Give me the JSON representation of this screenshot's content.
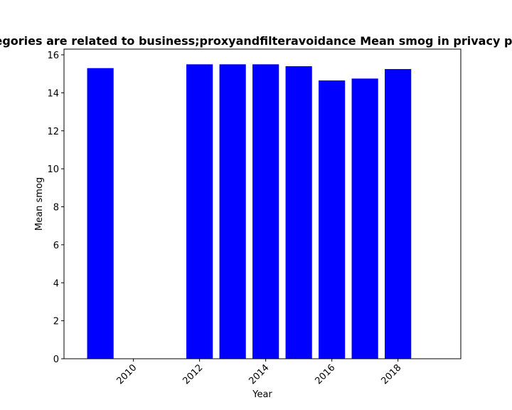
{
  "chart_data": {
    "type": "bar",
    "title": "Categories are related to business;proxyandfilteravoidance Mean smog in privacy policies",
    "xlabel": "Year",
    "ylabel": "Mean smog",
    "x": [
      2009,
      2012,
      2013,
      2014,
      2015,
      2016,
      2017,
      2018
    ],
    "values": [
      15.3,
      15.5,
      15.5,
      15.5,
      15.4,
      14.65,
      14.75,
      15.25
    ],
    "xlim": [
      2007.9,
      2019.9
    ],
    "ylim": [
      0,
      16.3
    ],
    "xticks": [
      2010,
      2012,
      2014,
      2016,
      2018
    ],
    "yticks": [
      0,
      2,
      4,
      6,
      8,
      10,
      12,
      14,
      16
    ],
    "bar_color": "#0000ff",
    "grid": false,
    "legend": false
  }
}
